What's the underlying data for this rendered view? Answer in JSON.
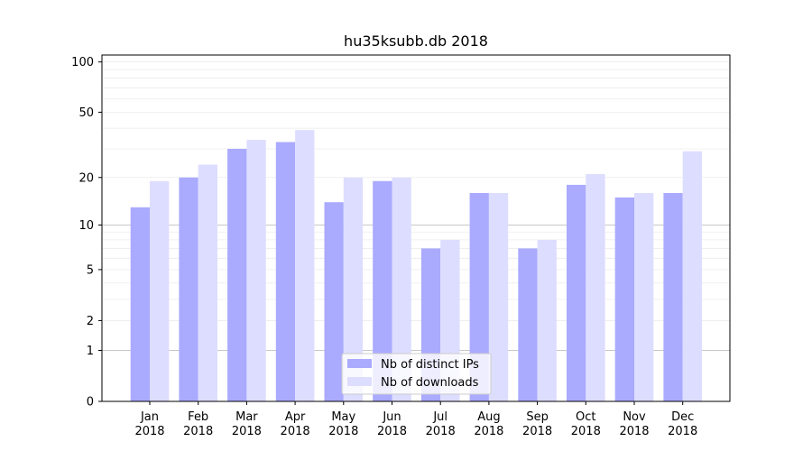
{
  "chart_data": {
    "type": "bar",
    "title": "hu35ksubb.db 2018",
    "xlabel": "",
    "ylabel": "",
    "categories": [
      [
        "Jan",
        "2018"
      ],
      [
        "Feb",
        "2018"
      ],
      [
        "Mar",
        "2018"
      ],
      [
        "Apr",
        "2018"
      ],
      [
        "May",
        "2018"
      ],
      [
        "Jun",
        "2018"
      ],
      [
        "Jul",
        "2018"
      ],
      [
        "Aug",
        "2018"
      ],
      [
        "Sep",
        "2018"
      ],
      [
        "Oct",
        "2018"
      ],
      [
        "Nov",
        "2018"
      ],
      [
        "Dec",
        "2018"
      ]
    ],
    "series": [
      {
        "name": "Nb of distinct IPs",
        "color": "#aaaaff",
        "values": [
          13,
          20,
          30,
          33,
          14,
          19,
          7,
          16,
          7,
          18,
          15,
          16
        ]
      },
      {
        "name": "Nb of downloads",
        "color": "#ddddff",
        "values": [
          19,
          24,
          34,
          39,
          20,
          20,
          8,
          16,
          8,
          21,
          16,
          29
        ]
      }
    ],
    "y_scale": "log(1+y)",
    "ylim": [
      0,
      110
    ],
    "yticks": [
      0,
      1,
      2,
      5,
      10,
      20,
      50,
      100
    ],
    "major_gridlines": [
      1,
      10
    ],
    "minor_grid": true,
    "legend_position": "lower center"
  }
}
